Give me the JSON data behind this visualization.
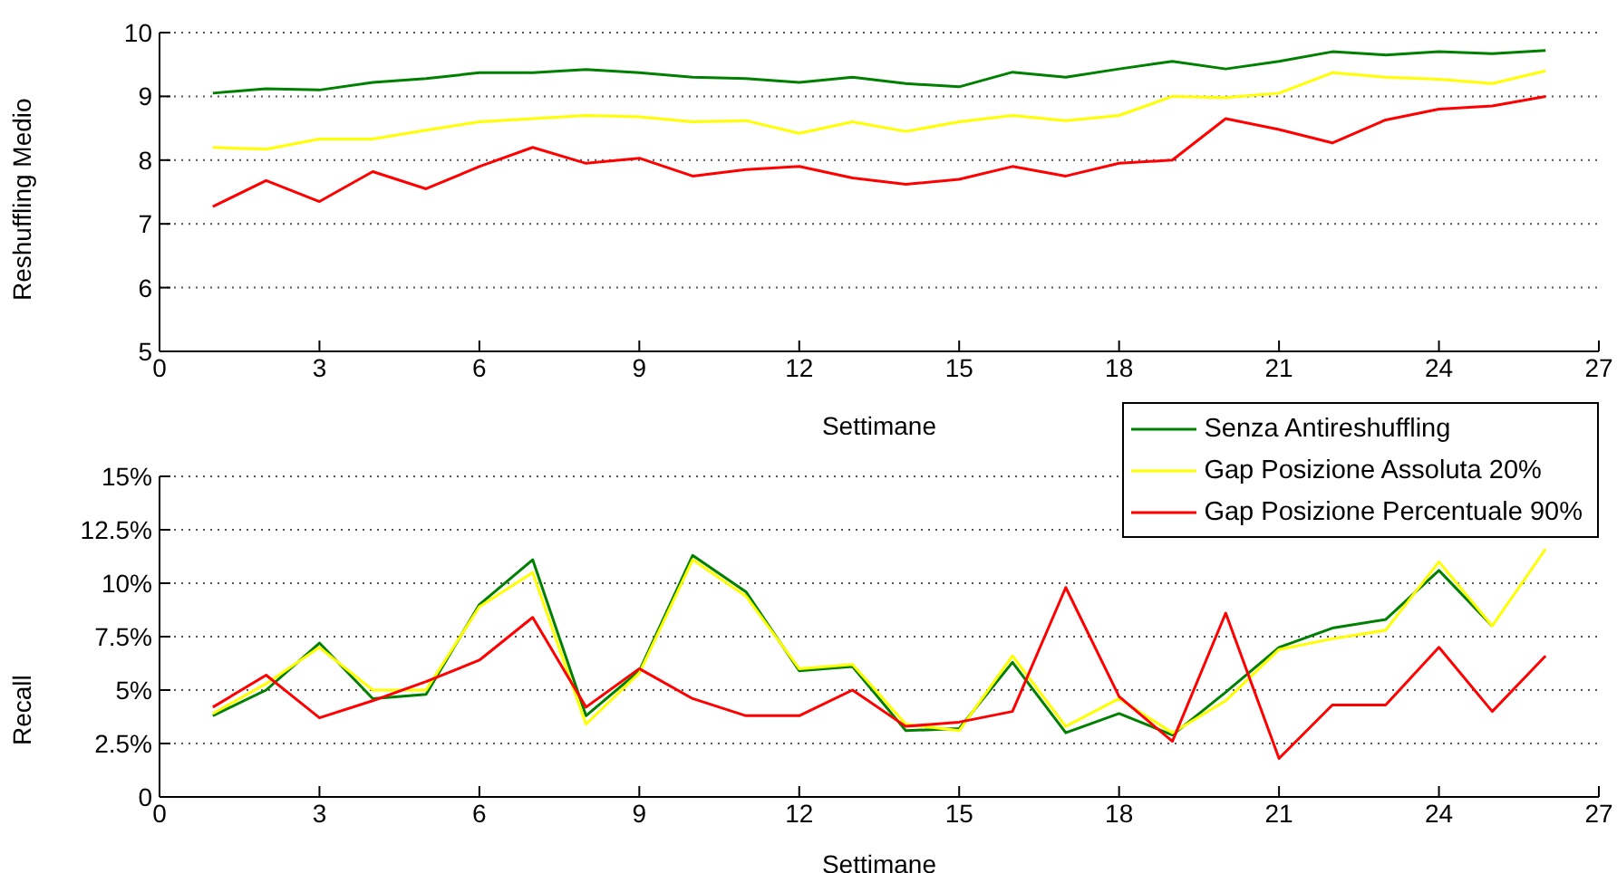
{
  "chart_data": [
    {
      "type": "line",
      "xlabel": "Settimane",
      "ylabel": "Reshuffling Medio",
      "x": [
        1,
        2,
        3,
        4,
        5,
        6,
        7,
        8,
        9,
        10,
        11,
        12,
        13,
        14,
        15,
        16,
        17,
        18,
        19,
        20,
        21,
        22,
        23,
        24,
        25,
        26
      ],
      "xlim": [
        0,
        27
      ],
      "xticks": [
        0,
        3,
        6,
        9,
        12,
        15,
        18,
        21,
        24,
        27
      ],
      "ylim": [
        5,
        10
      ],
      "yticks": [
        5,
        6,
        7,
        8,
        9,
        10
      ],
      "grid": "y",
      "legend": false,
      "marker": "none",
      "line_style": "solid",
      "series": [
        {
          "color": "#008000",
          "values": [
            9.05,
            9.12,
            9.1,
            9.22,
            9.28,
            9.37,
            9.37,
            9.42,
            9.37,
            9.3,
            9.28,
            9.22,
            9.3,
            9.2,
            9.15,
            9.38,
            9.3,
            9.43,
            9.55,
            9.43,
            9.55,
            9.7,
            9.65,
            9.7,
            9.67,
            9.72
          ]
        },
        {
          "color": "#ffff00",
          "values": [
            8.2,
            8.17,
            8.33,
            8.33,
            8.47,
            8.6,
            8.65,
            8.7,
            8.68,
            8.6,
            8.62,
            8.42,
            8.6,
            8.45,
            8.6,
            8.7,
            8.62,
            8.7,
            9.0,
            8.98,
            9.05,
            9.37,
            9.3,
            9.27,
            9.2,
            9.4
          ]
        },
        {
          "color": "#ff0000",
          "values": [
            7.27,
            7.68,
            7.35,
            7.82,
            7.55,
            7.9,
            8.2,
            7.95,
            8.03,
            7.75,
            7.85,
            7.9,
            7.72,
            7.62,
            7.7,
            7.9,
            7.75,
            7.95,
            8.0,
            8.65,
            8.48,
            8.27,
            8.63,
            8.8,
            8.85,
            9.0
          ]
        }
      ]
    },
    {
      "type": "line",
      "xlabel": "Settimane",
      "ylabel": "Recall",
      "x": [
        1,
        2,
        3,
        4,
        5,
        6,
        7,
        8,
        9,
        10,
        11,
        12,
        13,
        14,
        15,
        16,
        17,
        18,
        19,
        20,
        21,
        22,
        23,
        24,
        25,
        26
      ],
      "xlim": [
        0,
        27
      ],
      "xticks": [
        0,
        3,
        6,
        9,
        12,
        15,
        18,
        21,
        24,
        27
      ],
      "ylim": [
        0,
        15
      ],
      "yticks": [
        {
          "value": 0,
          "label": "0"
        },
        {
          "value": 2.5,
          "label": "2.5%"
        },
        {
          "value": 5,
          "label": "5%"
        },
        {
          "value": 7.5,
          "label": "7.5%"
        },
        {
          "value": 10,
          "label": "10%"
        },
        {
          "value": 12.5,
          "label": "12.5%"
        },
        {
          "value": 15,
          "label": "15%"
        }
      ],
      "grid": "y",
      "legend": "top right",
      "marker": "none",
      "line_style": "solid",
      "series": [
        {
          "name": "Senza Antireshuffling",
          "color": "#008000",
          "values": [
            3.8,
            5.0,
            7.2,
            4.6,
            4.8,
            9.0,
            11.1,
            3.8,
            5.9,
            11.3,
            9.6,
            5.9,
            6.1,
            3.1,
            3.2,
            6.3,
            3.0,
            3.9,
            2.9,
            4.9,
            7.0,
            7.9,
            8.3,
            10.6,
            8.0,
            null
          ]
        },
        {
          "name": "Gap Posizione Assoluta 20%",
          "color": "#ffff00",
          "values": [
            3.9,
            5.3,
            7.0,
            5.0,
            5.0,
            8.9,
            10.5,
            3.4,
            5.8,
            11.1,
            9.4,
            6.0,
            6.2,
            3.4,
            3.1,
            6.6,
            3.3,
            4.6,
            3.0,
            4.5,
            6.9,
            7.4,
            7.8,
            11.0,
            8.0,
            11.6
          ]
        },
        {
          "name": "Gap Posizione Percentuale 90%",
          "color": "#ff0000",
          "values": [
            4.2,
            5.7,
            3.7,
            4.5,
            5.4,
            6.4,
            8.4,
            4.2,
            6.0,
            4.6,
            3.8,
            3.8,
            5.0,
            3.3,
            3.5,
            4.0,
            9.8,
            4.7,
            2.6,
            8.6,
            1.8,
            4.3,
            4.3,
            7.0,
            4.0,
            6.6
          ]
        }
      ]
    }
  ]
}
